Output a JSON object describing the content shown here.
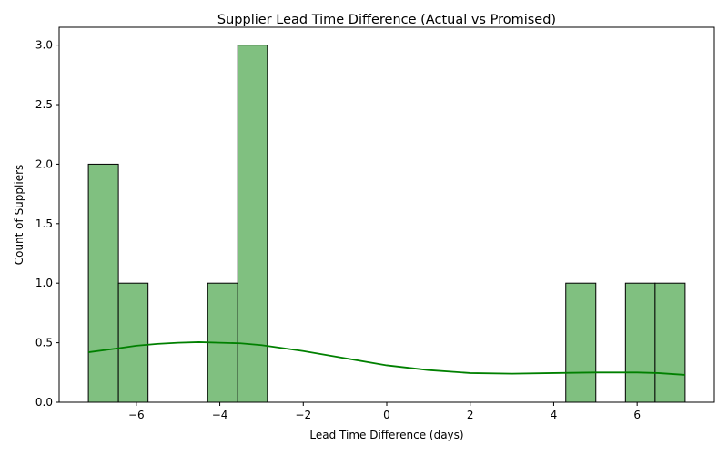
{
  "chart_data": {
    "type": "bar",
    "title": "Supplier Lead Time Difference (Actual vs Promised)",
    "xlabel": "Lead Time Difference (days)",
    "ylabel": "Count of Suppliers",
    "xlim": [
      -7.85,
      7.85
    ],
    "ylim": [
      0,
      3.15
    ],
    "x_ticks": [
      -6,
      -4,
      -2,
      0,
      2,
      4,
      6
    ],
    "x_tick_labels": [
      "−6",
      "−4",
      "−2",
      "0",
      "2",
      "4",
      "6"
    ],
    "y_ticks": [
      0,
      0.5,
      1.0,
      1.5,
      2.0,
      2.5,
      3.0
    ],
    "y_tick_labels": [
      "0.0",
      "0.5",
      "1.0",
      "1.5",
      "2.0",
      "2.5",
      "3.0"
    ],
    "bins": [
      {
        "x0": -7.15,
        "x1": -6.43,
        "count": 2
      },
      {
        "x0": -6.43,
        "x1": -5.72,
        "count": 1
      },
      {
        "x0": -4.29,
        "x1": -3.57,
        "count": 1
      },
      {
        "x0": -3.57,
        "x1": -2.86,
        "count": 3
      },
      {
        "x0": 4.29,
        "x1": 5.01,
        "count": 1
      },
      {
        "x0": 5.72,
        "x1": 6.43,
        "count": 1
      },
      {
        "x0": 6.43,
        "x1": 7.15,
        "count": 1
      }
    ],
    "kde": {
      "x": [
        -7.15,
        -6.5,
        -6.0,
        -5.5,
        -5.0,
        -4.5,
        -4.0,
        -3.5,
        -3.0,
        -2.0,
        -1.0,
        0.0,
        1.0,
        2.0,
        3.0,
        4.0,
        5.0,
        6.0,
        6.5,
        7.15
      ],
      "y": [
        0.42,
        0.45,
        0.475,
        0.49,
        0.5,
        0.505,
        0.5,
        0.495,
        0.48,
        0.43,
        0.37,
        0.31,
        0.27,
        0.245,
        0.24,
        0.245,
        0.25,
        0.25,
        0.245,
        0.23
      ]
    },
    "colors": {
      "bar_fill": "#80c080",
      "bar_edge": "#000000",
      "kde_line": "#008000"
    },
    "grid": false,
    "legend": "none"
  }
}
